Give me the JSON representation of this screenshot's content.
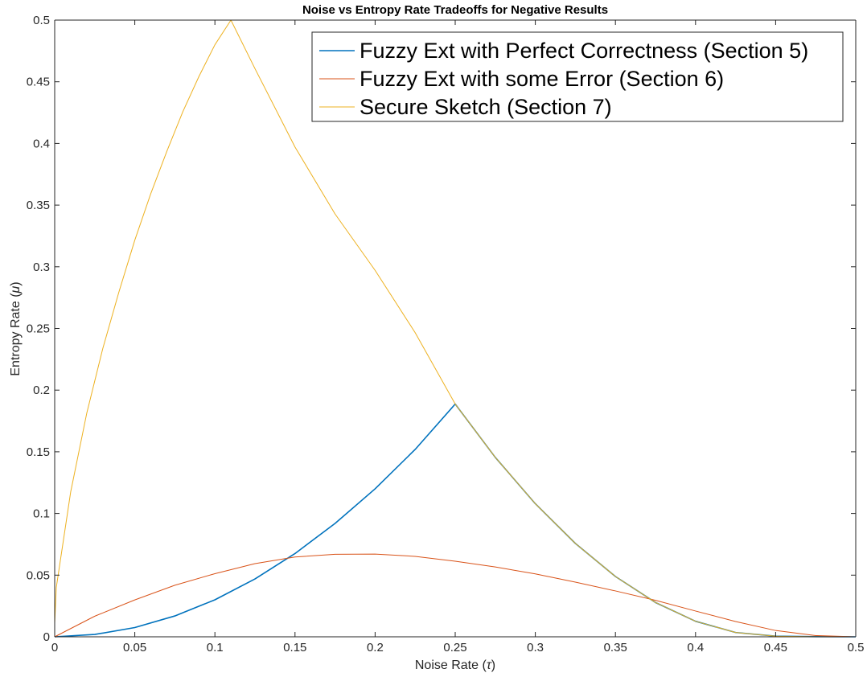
{
  "chart_data": {
    "type": "line",
    "title": "Noise vs Entropy Rate Tradeoffs for Negative Results",
    "xlabel": "Noise Rate",
    "xlabel_symbol": "τ",
    "ylabel": "Entropy Rate",
    "ylabel_symbol": "μ",
    "xlim": [
      0,
      0.5
    ],
    "ylim": [
      0,
      0.5
    ],
    "xticks": [
      0,
      0.05,
      0.1,
      0.15,
      0.2,
      0.25,
      0.3,
      0.35,
      0.4,
      0.45,
      0.5
    ],
    "xtick_labels": [
      "0",
      "0.05",
      "0.1",
      "0.15",
      "0.2",
      "0.25",
      "0.3",
      "0.35",
      "0.4",
      "0.45",
      "0.5"
    ],
    "yticks": [
      0,
      0.05,
      0.1,
      0.15,
      0.2,
      0.25,
      0.3,
      0.35,
      0.4,
      0.45,
      0.5
    ],
    "ytick_labels": [
      "0",
      "0.05",
      "0.1",
      "0.15",
      "0.2",
      "0.25",
      "0.3",
      "0.35",
      "0.4",
      "0.45",
      "0.5"
    ],
    "grid": false,
    "legend_position": "top-right",
    "series": [
      {
        "name": "Fuzzy Ext with Perfect Correctness (Section 5)",
        "color": "#0072BD",
        "x": [
          0,
          0.025,
          0.05,
          0.075,
          0.1,
          0.125,
          0.15,
          0.175,
          0.2,
          0.225,
          0.25,
          0.275,
          0.3,
          0.325,
          0.35,
          0.375,
          0.4,
          0.425,
          0.45,
          0.475,
          0.5
        ],
        "y": [
          0,
          0.0019,
          0.0075,
          0.0169,
          0.03,
          0.0469,
          0.0675,
          0.0919,
          0.12,
          0.1519,
          0.1887,
          0.1455,
          0.1079,
          0.0757,
          0.0489,
          0.0278,
          0.0126,
          0.0035,
          0.0005,
          0.0001,
          0
        ]
      },
      {
        "name": "Fuzzy Ext with some Error (Section 6)",
        "color": "#D95319",
        "x": [
          0,
          0.025,
          0.05,
          0.075,
          0.1,
          0.125,
          0.15,
          0.175,
          0.2,
          0.225,
          0.25,
          0.275,
          0.3,
          0.325,
          0.35,
          0.375,
          0.4,
          0.425,
          0.45,
          0.475,
          0.5
        ],
        "y": [
          0,
          0.0167,
          0.0299,
          0.0418,
          0.0512,
          0.0593,
          0.0647,
          0.0669,
          0.0671,
          0.0652,
          0.0613,
          0.0566,
          0.051,
          0.0443,
          0.0372,
          0.0296,
          0.0209,
          0.0124,
          0.0051,
          0.001,
          0
        ]
      },
      {
        "name": "Secure Sketch (Section 7)",
        "color": "#EDB120",
        "x": [
          0,
          0.001,
          0.01,
          0.02,
          0.03,
          0.04,
          0.05,
          0.06,
          0.07,
          0.08,
          0.09,
          0.1,
          0.11,
          0.125,
          0.15,
          0.175,
          0.2,
          0.225,
          0.25,
          0.275,
          0.3,
          0.325,
          0.35,
          0.375,
          0.4,
          0.425,
          0.45,
          0.475,
          0.5
        ],
        "y": [
          0.011,
          0.04,
          0.1176,
          0.1812,
          0.2336,
          0.2792,
          0.3216,
          0.3594,
          0.3936,
          0.4258,
          0.4542,
          0.48,
          0.5,
          0.4607,
          0.3971,
          0.3428,
          0.2971,
          0.2466,
          0.1887,
          0.1455,
          0.1079,
          0.0757,
          0.0489,
          0.0278,
          0.0126,
          0.0035,
          0.0005,
          0.0001,
          0
        ]
      }
    ]
  }
}
